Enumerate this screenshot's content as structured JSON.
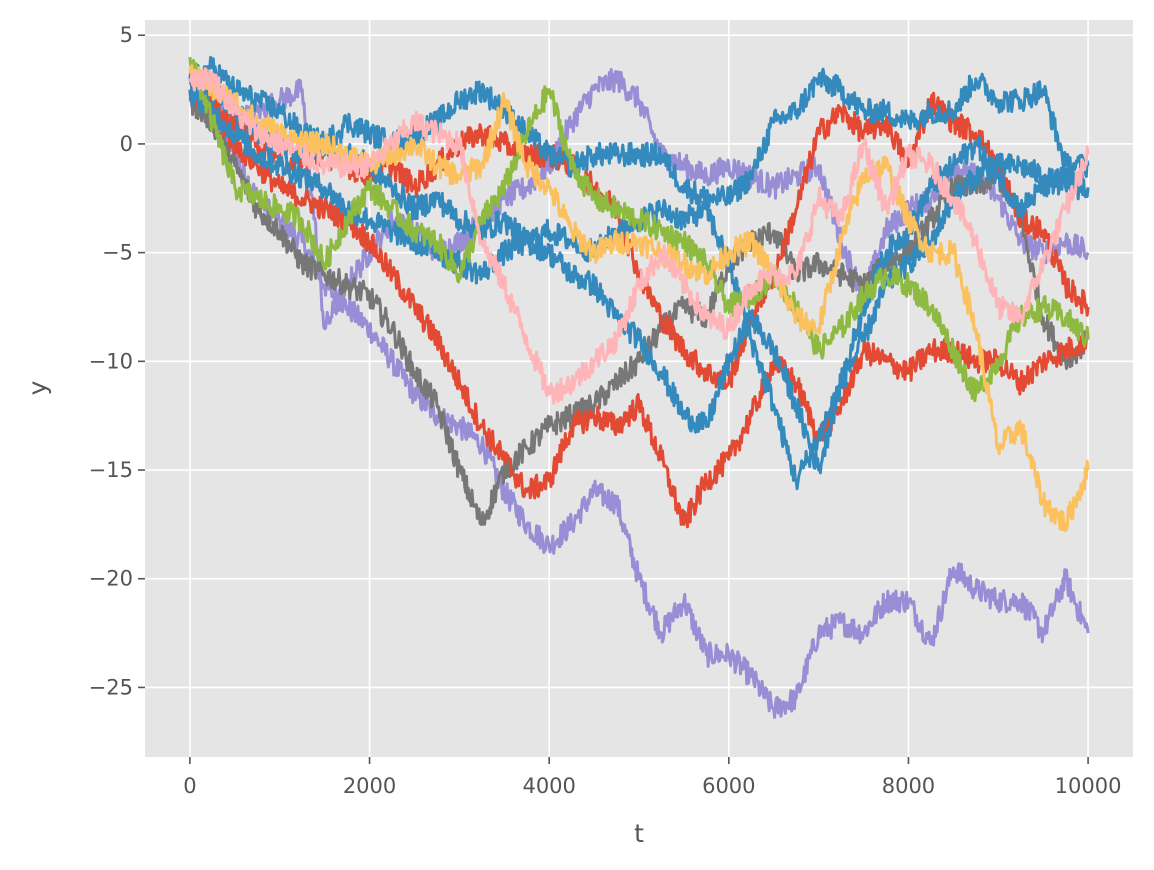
{
  "chart_data": {
    "type": "line",
    "title": "",
    "xlabel": "t",
    "ylabel": "y",
    "xlim": [
      -500,
      10500
    ],
    "ylim": [
      -28.2,
      5.7
    ],
    "grid": true,
    "legend": "none",
    "x_ticks": [
      0,
      2000,
      4000,
      6000,
      8000,
      10000
    ],
    "x_tick_labels": [
      "0",
      "2000",
      "4000",
      "6000",
      "8000",
      "10000"
    ],
    "y_ticks": [
      5,
      0,
      -5,
      -10,
      -15,
      -20,
      -25
    ],
    "y_tick_labels": [
      "5",
      "0",
      "−5",
      "−10",
      "−15",
      "−20",
      "−25"
    ],
    "background_color": "#e5e5e5",
    "grid_color": "#ffffff",
    "x": [
      0,
      250,
      500,
      750,
      1000,
      1250,
      1500,
      1750,
      2000,
      2250,
      2500,
      2750,
      3000,
      3250,
      3500,
      3750,
      4000,
      4250,
      4500,
      4750,
      5000,
      5250,
      5500,
      5750,
      6000,
      6250,
      6500,
      6750,
      7000,
      7250,
      7500,
      7750,
      8000,
      8250,
      8500,
      8750,
      9000,
      9250,
      9500,
      9750,
      10000
    ],
    "series": [
      {
        "color": "#988ed5",
        "values": [
          2.0,
          1.5,
          -0.5,
          -2.5,
          -3.5,
          -4.5,
          -6.5,
          -7.5,
          -8.5,
          -10.0,
          -11.5,
          -12.5,
          -13.0,
          -13.8,
          -16.0,
          -17.5,
          -18.5,
          -17.5,
          -16.0,
          -16.5,
          -20.0,
          -22.5,
          -21.0,
          -23.5,
          -23.5,
          -24.5,
          -26.0,
          -25.5,
          -22.5,
          -22.0,
          -22.5,
          -21.0,
          -21.0,
          -23.0,
          -19.5,
          -20.5,
          -21.0,
          -21.0,
          -22.5,
          -20.0,
          -22.5
        ]
      },
      {
        "color": "#988ed5",
        "values": [
          2.5,
          2.0,
          1.0,
          1.5,
          2.0,
          2.5,
          -8.5,
          -6.5,
          -5.0,
          -3.5,
          -4.0,
          -5.0,
          -4.5,
          -3.5,
          -2.5,
          -2.0,
          -1.0,
          1.0,
          2.5,
          3.0,
          2.0,
          -0.5,
          -1.0,
          -1.5,
          -1.0,
          -1.5,
          -2.0,
          -1.5,
          -1.0,
          -4.5,
          -7.0,
          -4.0,
          -3.0,
          -2.5,
          -1.0,
          -1.5,
          -2.5,
          -4.5,
          -5.0,
          -4.5,
          -5.0
        ]
      },
      {
        "color": "#777777",
        "values": [
          2.0,
          1.0,
          -1.0,
          -3.0,
          -4.0,
          -5.5,
          -6.0,
          -6.5,
          -7.0,
          -8.5,
          -10.5,
          -12.0,
          -15.0,
          -17.5,
          -15.0,
          -14.0,
          -13.0,
          -12.5,
          -12.0,
          -11.0,
          -10.0,
          -8.5,
          -7.5,
          -8.0,
          -5.5,
          -4.5,
          -4.0,
          -6.0,
          -5.5,
          -6.0,
          -6.5,
          -5.5,
          -5.0,
          -3.5,
          -2.0,
          -2.0,
          -1.5,
          -3.5,
          -8.0,
          -10.0,
          -9.0
        ]
      },
      {
        "color": "#e24a33",
        "values": [
          2.5,
          1.5,
          0.0,
          -1.0,
          -2.0,
          -2.5,
          -3.0,
          -3.5,
          -4.5,
          -6.0,
          -7.5,
          -9.0,
          -11.0,
          -13.0,
          -14.5,
          -16.0,
          -15.5,
          -13.0,
          -12.5,
          -13.0,
          -12.0,
          -14.5,
          -17.5,
          -15.5,
          -14.5,
          -12.5,
          -10.0,
          -11.0,
          -13.5,
          -12.0,
          -9.5,
          -10.0,
          -10.5,
          -9.5,
          -9.5,
          -10.0,
          -10.0,
          -11.0,
          -10.0,
          -9.5,
          -9.0
        ]
      },
      {
        "color": "#e24a33",
        "values": [
          3.0,
          2.0,
          1.0,
          0.0,
          -0.5,
          -1.0,
          -0.5,
          -1.0,
          -1.5,
          -1.0,
          -2.0,
          -1.0,
          0.0,
          0.5,
          0.0,
          -0.5,
          -0.5,
          -1.0,
          -2.0,
          -3.0,
          -6.0,
          -8.0,
          -9.5,
          -10.5,
          -11.0,
          -8.0,
          -6.0,
          -3.0,
          0.5,
          1.5,
          0.5,
          1.0,
          -1.0,
          2.0,
          1.0,
          0.5,
          -1.0,
          -3.5,
          -4.0,
          -6.5,
          -7.5
        ]
      },
      {
        "color": "#348abd",
        "values": [
          3.0,
          2.5,
          1.5,
          0.5,
          0.0,
          -0.5,
          0.0,
          -0.5,
          -1.0,
          -2.0,
          -3.0,
          -2.5,
          -3.5,
          -4.0,
          -3.5,
          -4.5,
          -5.0,
          -6.0,
          -6.5,
          -8.0,
          -9.0,
          -10.5,
          -12.5,
          -13.0,
          -10.0,
          -8.0,
          -9.5,
          -12.0,
          -15.0,
          -11.0,
          -7.5,
          -5.0,
          -4.0,
          -2.0,
          -1.0,
          0.0,
          -1.5,
          -3.0,
          -2.0,
          -1.5,
          -2.0
        ]
      },
      {
        "color": "#348abd",
        "values": [
          3.0,
          3.5,
          2.5,
          2.0,
          1.5,
          0.5,
          0.0,
          1.0,
          0.5,
          0.0,
          0.5,
          1.0,
          2.0,
          2.5,
          1.5,
          0.5,
          -0.5,
          -1.0,
          -0.5,
          -0.5,
          -0.5,
          -0.5,
          -2.0,
          -2.5,
          -2.5,
          -1.5,
          1.0,
          1.5,
          3.0,
          2.5,
          1.5,
          1.5,
          1.0,
          1.5,
          1.5,
          3.0,
          2.0,
          2.0,
          2.5,
          -1.0,
          -1.0
        ]
      },
      {
        "color": "#348abd",
        "values": [
          2.5,
          1.5,
          0.5,
          -0.5,
          -1.0,
          -1.5,
          -2.0,
          -3.0,
          -3.5,
          -4.0,
          -4.5,
          -5.0,
          -5.5,
          -6.0,
          -5.0,
          -4.5,
          -4.0,
          -4.5,
          -5.0,
          -4.0,
          -3.5,
          -3.0,
          -3.5,
          -3.0,
          -5.5,
          -9.0,
          -12.0,
          -15.5,
          -13.5,
          -11.0,
          -9.0,
          -6.5,
          -5.5,
          -4.5,
          -2.5,
          -1.5,
          -1.0,
          -1.0,
          -1.5,
          -2.0,
          -2.0
        ]
      },
      {
        "color": "#8eba42",
        "values": [
          4.0,
          1.0,
          -2.0,
          -2.5,
          -3.0,
          -3.5,
          -5.5,
          -3.5,
          -2.0,
          -3.0,
          -4.0,
          -4.5,
          -6.0,
          -3.5,
          -2.0,
          0.5,
          2.5,
          -1.0,
          -2.5,
          -3.0,
          -3.5,
          -4.0,
          -4.5,
          -5.5,
          -7.5,
          -7.0,
          -6.0,
          -7.5,
          -9.5,
          -8.5,
          -7.0,
          -6.0,
          -6.5,
          -7.5,
          -9.5,
          -11.5,
          -10.0,
          -8.0,
          -7.5,
          -8.0,
          -9.0
        ]
      },
      {
        "color": "#fbc15e",
        "values": [
          3.5,
          2.5,
          2.0,
          1.0,
          0.5,
          0.0,
          0.0,
          -0.5,
          -1.0,
          -0.5,
          0.0,
          -1.0,
          -1.5,
          -1.0,
          2.0,
          -1.0,
          -2.0,
          -4.0,
          -5.0,
          -4.5,
          -4.5,
          -5.0,
          -5.5,
          -6.0,
          -5.0,
          -4.5,
          -6.0,
          -8.0,
          -8.5,
          -4.5,
          -1.5,
          -1.0,
          -3.5,
          -5.0,
          -5.0,
          -8.5,
          -14.0,
          -13.0,
          -16.5,
          -17.5,
          -15.0
        ]
      },
      {
        "color": "#ffb5b8",
        "values": [
          3.0,
          3.0,
          1.5,
          0.5,
          0.0,
          -0.5,
          -1.0,
          -1.0,
          -1.0,
          0.0,
          1.0,
          0.5,
          0.0,
          -4.5,
          -6.5,
          -9.0,
          -11.5,
          -11.0,
          -10.0,
          -9.0,
          -6.5,
          -5.0,
          -6.5,
          -8.0,
          -8.5,
          -6.5,
          -6.0,
          -6.0,
          -2.5,
          -3.5,
          0.0,
          -3.0,
          -0.5,
          -1.0,
          -2.5,
          -4.5,
          -7.5,
          -8.0,
          -5.5,
          -3.0,
          -0.5
        ]
      }
    ]
  }
}
